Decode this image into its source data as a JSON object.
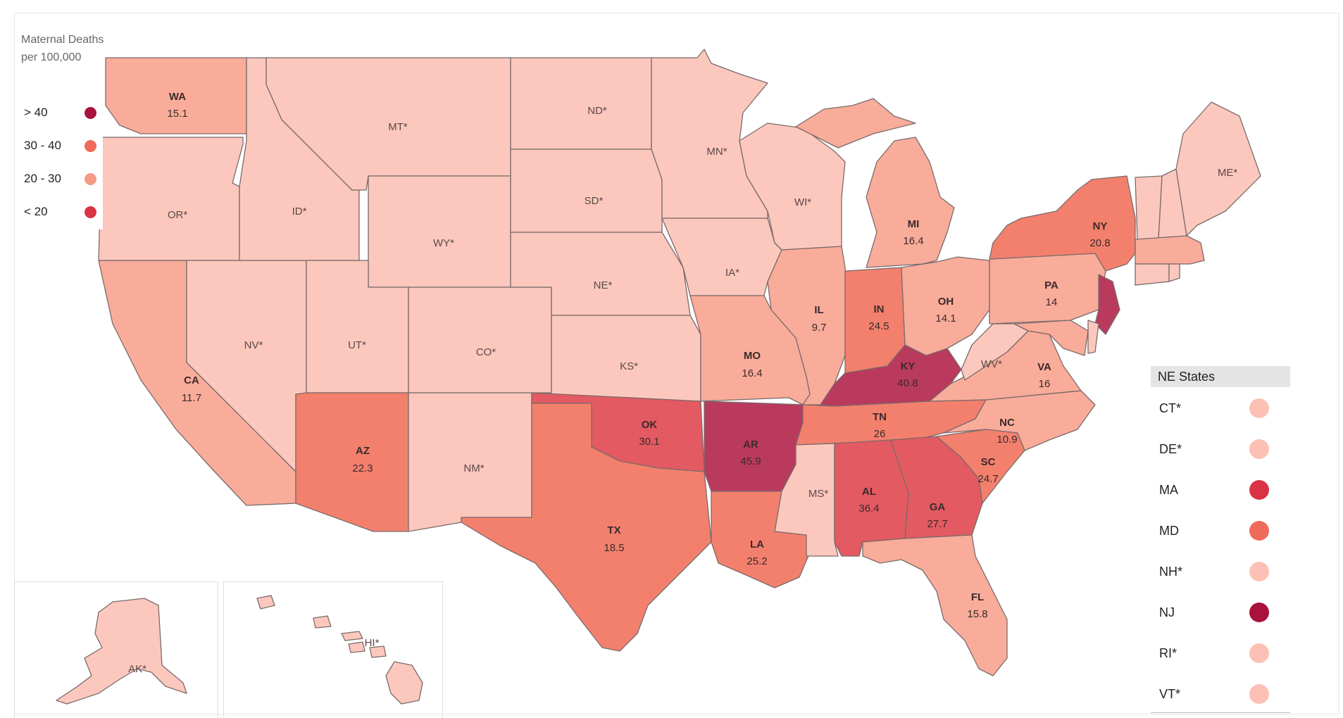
{
  "legend": {
    "title": "Maternal Deaths per 100,000",
    "items": [
      {
        "label": "> 40",
        "color": "#a8123c"
      },
      {
        "label": "30 - 40",
        "color": "#ef6a5a"
      },
      {
        "label": "20 - 30",
        "color": "#f59a86"
      },
      {
        "label": "< 20",
        "color": "#d93344"
      }
    ]
  },
  "palette": {
    "star": "#fcc8bd",
    "lightest": "#fcc8bd",
    "light": "#f9ac9a",
    "mid": "#f6957f",
    "midhi": "#f3806d",
    "high": "#e35a62",
    "dark": "#ba3a5e"
  },
  "states": {
    "WA": {
      "label": "WA",
      "value": "15.1"
    },
    "OR": {
      "label": "OR*"
    },
    "CA": {
      "label": "CA",
      "value": "11.7"
    },
    "NV": {
      "label": "NV*"
    },
    "ID": {
      "label": "ID*"
    },
    "MT": {
      "label": "MT*"
    },
    "WY": {
      "label": "WY*"
    },
    "UT": {
      "label": "UT*"
    },
    "AZ": {
      "label": "AZ",
      "value": "22.3"
    },
    "CO": {
      "label": "CO*"
    },
    "NM": {
      "label": "NM*"
    },
    "ND": {
      "label": "ND*"
    },
    "SD": {
      "label": "SD*"
    },
    "NE": {
      "label": "NE*"
    },
    "KS": {
      "label": "KS*"
    },
    "OK": {
      "label": "OK",
      "value": "30.1"
    },
    "TX": {
      "label": "TX",
      "value": "18.5"
    },
    "MN": {
      "label": "MN*"
    },
    "IA": {
      "label": "IA*"
    },
    "MO": {
      "label": "MO",
      "value": "16.4"
    },
    "AR": {
      "label": "AR",
      "value": "45.9"
    },
    "LA": {
      "label": "LA",
      "value": "25.2"
    },
    "WI": {
      "label": "WI*"
    },
    "IL": {
      "label": "IL",
      "value": "9.7"
    },
    "MS": {
      "label": "MS*"
    },
    "MI": {
      "label": "MI",
      "value": "16.4"
    },
    "IN": {
      "label": "IN",
      "value": "24.5"
    },
    "KY": {
      "label": "KY",
      "value": "40.8"
    },
    "TN": {
      "label": "TN",
      "value": "26"
    },
    "AL": {
      "label": "AL",
      "value": "36.4"
    },
    "OH": {
      "label": "OH",
      "value": "14.1"
    },
    "GA": {
      "label": "GA",
      "value": "27.7"
    },
    "FL": {
      "label": "FL",
      "value": "15.8"
    },
    "SC": {
      "label": "SC",
      "value": "24.7"
    },
    "NC": {
      "label": "NC",
      "value": "10.9"
    },
    "VA": {
      "label": "VA",
      "value": "16"
    },
    "WV": {
      "label": "WV*"
    },
    "PA": {
      "label": "PA",
      "value": "14"
    },
    "NY": {
      "label": "NY",
      "value": "20.8"
    },
    "ME": {
      "label": "ME*"
    },
    "AK": {
      "label": "AK*"
    },
    "HI": {
      "label": "HI*"
    }
  },
  "ne_panel": {
    "title": "NE States",
    "items": [
      {
        "label": "CT*",
        "color": "#fcc0b4"
      },
      {
        "label": "DE*",
        "color": "#fcc0b4"
      },
      {
        "label": "MA",
        "color": "#d93344"
      },
      {
        "label": "MD",
        "color": "#ef6a5a"
      },
      {
        "label": "NH*",
        "color": "#fcc0b4"
      },
      {
        "label": "NJ",
        "color": "#a8123c"
      },
      {
        "label": "RI*",
        "color": "#fcc0b4"
      },
      {
        "label": "VT*",
        "color": "#fcc0b4"
      }
    ]
  }
}
